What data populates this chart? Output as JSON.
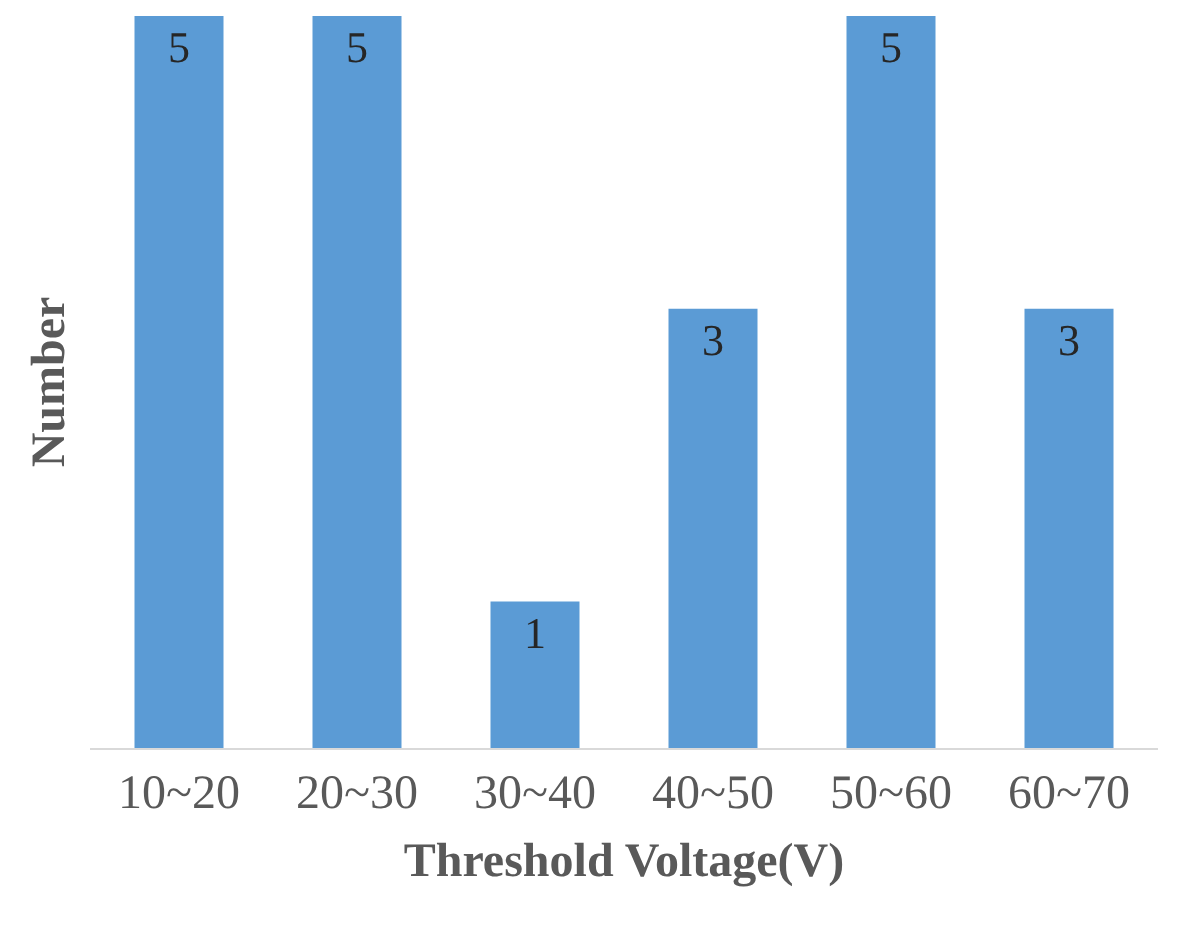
{
  "chart_data": {
    "type": "bar",
    "xlabel": "Threshold Voltage(V)",
    "ylabel": "Number",
    "categories": [
      "10~20",
      "20~30",
      "30~40",
      "40~50",
      "50~60",
      "60~70"
    ],
    "values": [
      5,
      5,
      1,
      3,
      5,
      3
    ],
    "color": "#5b9bd5",
    "ylim": [
      0,
      5
    ],
    "data_labels": true,
    "tick_labels": "x"
  }
}
